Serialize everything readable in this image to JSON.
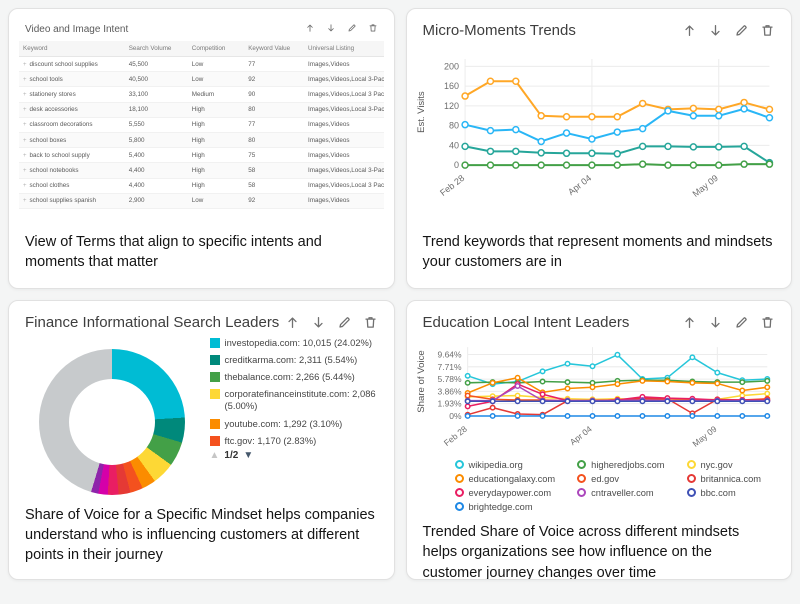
{
  "toolbar_icons": [
    "move-up-icon",
    "move-down-icon",
    "edit-icon",
    "delete-icon"
  ],
  "cards": {
    "video_image_intent": {
      "title": "Video and Image Intent",
      "caption": "View of Terms that align to specific intents and moments that matter",
      "table": {
        "columns": [
          "Keyword",
          "Search Volume",
          "Competition",
          "Keyword Value",
          "Universal Listing"
        ],
        "rows": [
          [
            "discount school supplies",
            "45,500",
            "Low",
            "77",
            "Images,Videos"
          ],
          [
            "school tools",
            "40,500",
            "Low",
            "92",
            "Images,Videos,Local 3-Pack"
          ],
          [
            "stationery stores",
            "33,100",
            "Medium",
            "90",
            "Images,Videos,Local 3 Pack"
          ],
          [
            "desk accessories",
            "18,100",
            "High",
            "80",
            "Images,Videos,Local 3-Pack"
          ],
          [
            "classroom decorations",
            "5,550",
            "High",
            "77",
            "Images,Videos"
          ],
          [
            "school boxes",
            "5,800",
            "High",
            "80",
            "Images,Videos"
          ],
          [
            "back to school supply",
            "5,400",
            "High",
            "75",
            "Images,Videos"
          ],
          [
            "school notebooks",
            "4,400",
            "High",
            "58",
            "Images,Videos,Local 3-Pack"
          ],
          [
            "school clothes",
            "4,400",
            "High",
            "58",
            "Images,Videos,Local 3 Pack"
          ],
          [
            "school supplies spanish",
            "2,900",
            "Low",
            "92",
            "Images,Videos"
          ]
        ]
      }
    },
    "micro_moments": {
      "title": "Micro-Moments Trends",
      "caption": "Trend keywords that represent moments and mindsets your customers are in"
    },
    "finance_leaders": {
      "title": "Finance Informational Search Leaders",
      "caption": "Share of Voice for a Specific Mindset helps companies understand who is influencing customers at different points in their journey",
      "legend": [
        {
          "label": "investopedia.com: 10,015 (24.02%)",
          "color": "#00BCD4"
        },
        {
          "label": "creditkarma.com: 2,311 (5.54%)",
          "color": "#00897B"
        },
        {
          "label": "thebalance.com: 2,266 (5.44%)",
          "color": "#43A047"
        },
        {
          "label": "corporatefinanceinstitute.com: 2,086 (5.00%)",
          "color": "#FDD835"
        },
        {
          "label": "youtube.com: 1,292 (3.10%)",
          "color": "#FB8C00"
        },
        {
          "label": "ftc.gov: 1,170 (2.83%)",
          "color": "#F4511E"
        }
      ],
      "pagination": "1/2",
      "pager_up": "▲",
      "pager_down": "▼"
    },
    "education_leaders": {
      "title": "Education Local Intent Leaders",
      "caption": "Trended Share of Voice across different mindsets helps organizations see how influence on the customer journey changes over time",
      "legend": [
        {
          "label": "wikipedia.org",
          "color": "#26C6DA"
        },
        {
          "label": "higheredjobs.com",
          "color": "#43A047"
        },
        {
          "label": "nyc.gov",
          "color": "#FDD835"
        },
        {
          "label": "educationgalaxy.com",
          "color": "#FB8C00"
        },
        {
          "label": "ed.gov",
          "color": "#F4511E"
        },
        {
          "label": "britannica.com",
          "color": "#E53935"
        },
        {
          "label": "everydaypower.com",
          "color": "#E91E63"
        },
        {
          "label": "cntraveller.com",
          "color": "#AB47BC"
        },
        {
          "label": "bbc.com",
          "color": "#3F51B5"
        },
        {
          "label": "brightedge.com",
          "color": "#1E88E5"
        }
      ]
    }
  },
  "chart_data": [
    {
      "type": "line",
      "title": "Micro-Moments Trends",
      "xlabel": "",
      "ylabel": "Est. Visits",
      "ylim": [
        0,
        215
      ],
      "y_ticks": [
        0,
        40,
        80,
        120,
        160,
        200
      ],
      "y_tick_labels": [
        "0",
        "40",
        "80",
        "120",
        "160",
        "200"
      ],
      "n_points": 13,
      "x_ticks": [
        "Feb 28",
        "Apr 04",
        "May 09"
      ],
      "x_tick_indices": [
        0,
        5,
        10
      ],
      "grid": true,
      "legend_position": "none",
      "line_width": 2,
      "marker_r": 3,
      "series": [
        {
          "name": "orange",
          "color": "#FFA726",
          "values": [
            140,
            170,
            170,
            100,
            98,
            98,
            98,
            125,
            113,
            115,
            113,
            127,
            113
          ]
        },
        {
          "name": "blue",
          "color": "#29B6F6",
          "values": [
            82,
            70,
            72,
            48,
            65,
            53,
            67,
            74,
            110,
            100,
            100,
            114,
            96
          ]
        },
        {
          "name": "teal",
          "color": "#26A69A",
          "values": [
            38,
            28,
            28,
            25,
            24,
            24,
            23,
            38,
            38,
            37,
            37,
            38,
            5
          ]
        },
        {
          "name": "green",
          "color": "#43A047",
          "values": [
            0,
            0,
            0,
            0,
            0,
            0,
            0,
            2,
            0,
            0,
            0,
            2,
            2
          ]
        }
      ]
    },
    {
      "type": "pie",
      "title": "Finance Informational Search Leaders",
      "donut": true,
      "legend_position": "right",
      "slices": [
        {
          "label": "investopedia.com: 10,015 (24.02%)",
          "value": 24.02,
          "color": "#00BCD4"
        },
        {
          "label": "creditkarma.com: 2,311 (5.54%)",
          "value": 5.54,
          "color": "#00897B"
        },
        {
          "label": "thebalance.com: 2,266 (5.44%)",
          "value": 5.44,
          "color": "#43A047"
        },
        {
          "label": "corporatefinanceinstitute.com: 2,086 (5.00%)",
          "value": 5.0,
          "color": "#FDD835"
        },
        {
          "label": "youtube.com: 1,292 (3.10%)",
          "value": 3.1,
          "color": "#FB8C00"
        },
        {
          "label": "ftc.gov: 1,170 (2.83%)",
          "value": 2.83,
          "color": "#F4511E"
        },
        {
          "label": "unlabeled",
          "value": 2.6,
          "color": "#E53935"
        },
        {
          "label": "unlabeled",
          "value": 2.4,
          "color": "#E91E63"
        },
        {
          "label": "unlabeled",
          "value": 2.1,
          "color": "#D500A9"
        },
        {
          "label": "unlabeled",
          "value": 1.6,
          "color": "#8E24AA"
        },
        {
          "label": "remaining",
          "value": 45.37,
          "color": "#C7CACC"
        }
      ]
    },
    {
      "type": "line",
      "title": "Education Local Intent Leaders",
      "xlabel": "",
      "ylabel": "Share of Voice",
      "ylim": [
        0,
        10.8
      ],
      "y_ticks": [
        0,
        1.93,
        3.86,
        5.78,
        7.71,
        9.64
      ],
      "y_tick_labels": [
        "0%",
        "1.93%",
        "3.86%",
        "5.78%",
        "7.71%",
        "9.64%"
      ],
      "n_points": 13,
      "x_ticks": [
        "Feb 28",
        "Apr 04",
        "May 09"
      ],
      "x_tick_indices": [
        0,
        5,
        10
      ],
      "grid": true,
      "legend_position": "bottom",
      "line_width": 1.5,
      "marker_r": 2.2,
      "series": [
        {
          "name": "wikipedia.org",
          "color": "#26C6DA",
          "values": [
            6.3,
            5.0,
            5.4,
            7.0,
            8.2,
            7.8,
            9.6,
            5.8,
            6.0,
            9.2,
            6.8,
            5.6,
            5.8
          ]
        },
        {
          "name": "higheredjobs.com",
          "color": "#43A047",
          "values": [
            5.2,
            5.3,
            5.2,
            5.4,
            5.3,
            5.2,
            5.5,
            5.6,
            5.6,
            5.4,
            5.3,
            5.3,
            5.5
          ]
        },
        {
          "name": "nyc.gov",
          "color": "#FDD835",
          "values": [
            3.0,
            3.1,
            3.2,
            2.9,
            2.7,
            2.6,
            2.7,
            2.6,
            2.8,
            2.5,
            2.6,
            3.2,
            3.5
          ]
        },
        {
          "name": "educationgalaxy.com",
          "color": "#FB8C00",
          "values": [
            3.6,
            5.2,
            6.0,
            3.7,
            4.3,
            4.5,
            5.0,
            5.5,
            5.4,
            5.2,
            5.1,
            4.0,
            4.5
          ]
        },
        {
          "name": "ed.gov",
          "color": "#F4511E",
          "values": [
            3.2,
            2.6,
            2.5,
            2.5,
            2.4,
            2.4,
            2.5,
            2.6,
            2.5,
            2.5,
            2.4,
            2.5,
            2.7
          ]
        },
        {
          "name": "britannica.com",
          "color": "#E53935",
          "values": [
            0.2,
            1.3,
            0.3,
            0.2,
            2.4,
            2.4,
            2.5,
            2.8,
            2.7,
            0.4,
            2.6,
            2.5,
            2.5
          ]
        },
        {
          "name": "everydaypower.com",
          "color": "#E91E63",
          "values": [
            1.5,
            2.3,
            5.0,
            3.4,
            2.4,
            2.4,
            2.5,
            3.0,
            2.8,
            2.7,
            2.5,
            2.5,
            2.4
          ]
        },
        {
          "name": "cntraveller.com",
          "color": "#AB47BC",
          "values": [
            2.4,
            2.4,
            4.7,
            2.4,
            2.4,
            2.4,
            2.4,
            2.5,
            2.4,
            2.4,
            2.4,
            2.4,
            2.4
          ]
        },
        {
          "name": "bbc.com",
          "color": "#3F51B5",
          "values": [
            2.3,
            2.3,
            2.3,
            2.3,
            2.3,
            2.3,
            2.3,
            2.3,
            2.3,
            2.3,
            2.3,
            2.3,
            2.3
          ]
        },
        {
          "name": "brightedge.com",
          "color": "#1E88E5",
          "values": [
            0,
            0,
            0,
            0,
            0,
            0,
            0,
            0,
            0,
            0,
            0,
            0,
            0
          ]
        }
      ]
    }
  ]
}
